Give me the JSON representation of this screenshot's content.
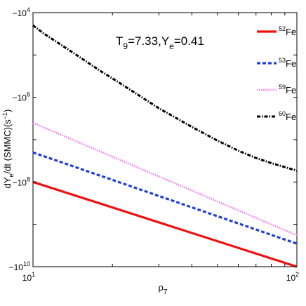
{
  "chart_data": {
    "type": "line",
    "title": "",
    "annotation": {
      "T_sym": "T",
      "T_sub": "9",
      "T_val": "=7.33,",
      "Y_sym": "Y",
      "Y_sub": "e",
      "Y_val": "=0.41"
    },
    "xlabel": {
      "main": "ρ",
      "sub": "7"
    },
    "ylabel": {
      "a": "dY",
      "b": "e",
      "c": "/dt (SMMC)(s",
      "d": "−1",
      "e": ")"
    },
    "x_scale": "log",
    "y_scale": "log",
    "xlim": [
      10,
      100
    ],
    "y_sign": "negative",
    "ylim_abs": [
      1e-10,
      0.0001
    ],
    "x_ticks": [
      {
        "value": 10,
        "base": "10",
        "exp": "1"
      },
      {
        "value": 100,
        "base": "10",
        "exp": "2"
      }
    ],
    "y_ticks": [
      {
        "value": 0.0001,
        "base": "−10",
        "exp": "4"
      },
      {
        "value": 1e-06,
        "base": "−10",
        "exp": "6"
      },
      {
        "value": 1e-08,
        "base": "−10",
        "exp": "8"
      },
      {
        "value": 1e-10,
        "base": "−10",
        "exp": "10"
      }
    ],
    "grid": false,
    "legend_position": "top-right",
    "series": [
      {
        "name": "52Fe",
        "mass": "52",
        "element": "Fe",
        "color": "#ee1111",
        "style": "solid",
        "x": [
          10,
          100
        ],
        "y_abs": [
          1e-08,
          1e-10
        ]
      },
      {
        "name": "53Fe",
        "mass": "53",
        "element": "Fe",
        "color": "#1f3fd6",
        "style": "dashed",
        "x": [
          10,
          100
        ],
        "y_abs": [
          5e-08,
          3.5e-10
        ]
      },
      {
        "name": "59Fe",
        "mass": "59",
        "element": "Fe",
        "color": "#f07cf0",
        "style": "dotted",
        "x": [
          10,
          100
        ],
        "y_abs": [
          2.5e-07,
          5.5e-10
        ]
      },
      {
        "name": "60Fe",
        "mass": "60",
        "element": "Fe",
        "color": "#000000",
        "style": "dashdot",
        "x": [
          10,
          11,
          12.5,
          15,
          18,
          20,
          25,
          30,
          35,
          40,
          50,
          60,
          70,
          80,
          90,
          100
        ],
        "y_abs": [
          5e-05,
          3.2e-05,
          1.9e-05,
          9e-06,
          4.2e-06,
          2.8e-06,
          1.15e-06,
          5.5e-07,
          3.2e-07,
          2e-07,
          9.5e-08,
          5.5e-08,
          3.7e-08,
          2.8e-08,
          2.25e-08,
          1.85e-08
        ]
      }
    ]
  }
}
